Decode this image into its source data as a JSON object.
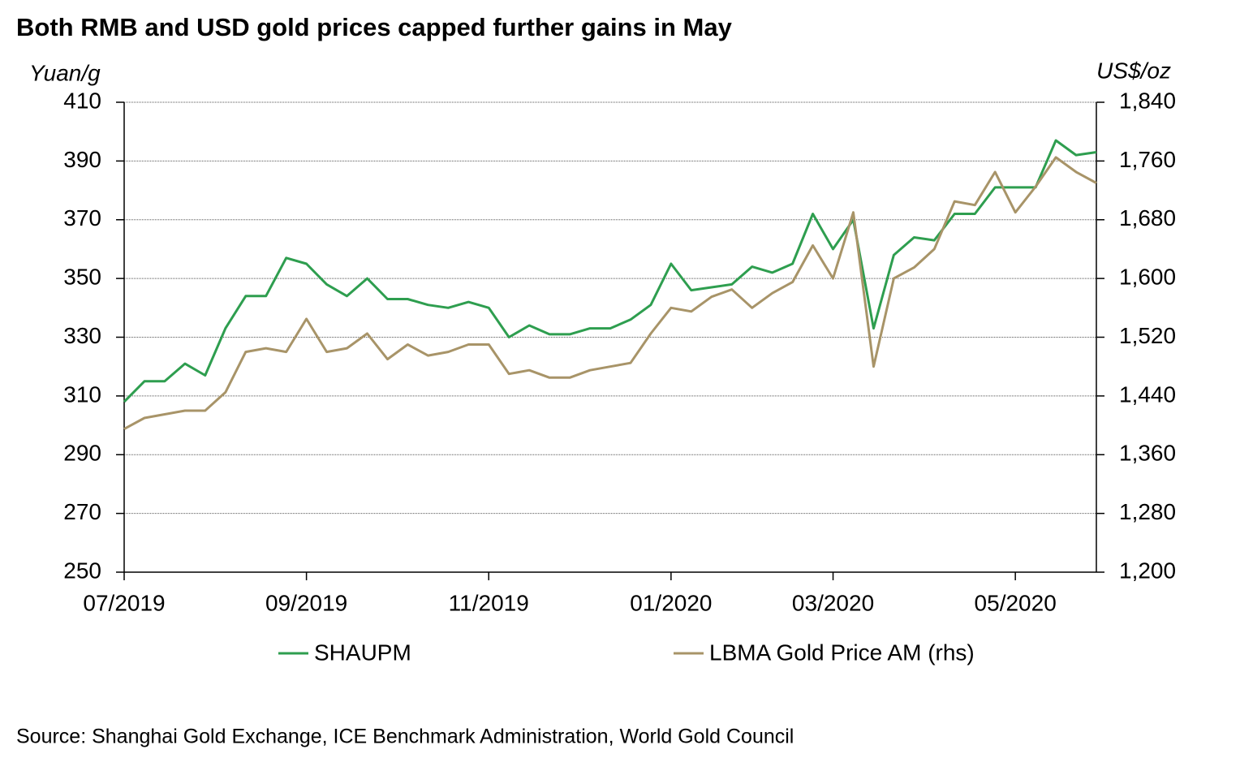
{
  "chart_data": {
    "type": "line",
    "title": "Both RMB and USD gold prices capped further gains in May",
    "y_label": "Yuan/g",
    "y2_label": "US$/oz",
    "source": "Source: Shanghai Gold Exchange, ICE Benchmark Administration, World Gold Council",
    "categories": [
      "07/2019",
      null,
      null,
      null,
      null,
      null,
      null,
      null,
      null,
      "09/2019",
      null,
      null,
      null,
      null,
      null,
      null,
      null,
      null,
      "11/2019",
      null,
      null,
      null,
      null,
      null,
      null,
      null,
      null,
      "01/2020",
      null,
      null,
      null,
      null,
      null,
      null,
      null,
      "03/2020",
      null,
      null,
      null,
      null,
      null,
      null,
      null,
      null,
      "05/2020",
      null,
      null,
      null,
      null
    ],
    "ylim": [
      250,
      410
    ],
    "yticks": [
      250,
      270,
      290,
      310,
      330,
      350,
      370,
      390,
      410
    ],
    "y2lim": [
      1200,
      1840
    ],
    "y2ticks": [
      {
        "value": 1200,
        "label": "1,200"
      },
      {
        "value": 1280,
        "label": "1,280"
      },
      {
        "value": 1360,
        "label": "1,360"
      },
      {
        "value": 1440,
        "label": "1,440"
      },
      {
        "value": 1520,
        "label": "1,520"
      },
      {
        "value": 1600,
        "label": "1,600"
      },
      {
        "value": 1680,
        "label": "1,680"
      },
      {
        "value": 1760,
        "label": "1,760"
      },
      {
        "value": 1840,
        "label": "1,840"
      }
    ],
    "grid": true,
    "series": [
      {
        "name": "SHAUPM",
        "color": "#2e9e4f",
        "axis": "y",
        "values": [
          308,
          315,
          315,
          321,
          317,
          333,
          344,
          344,
          357,
          355,
          348,
          344,
          350,
          343,
          343,
          341,
          340,
          342,
          340,
          330,
          334,
          331,
          331,
          333,
          333,
          336,
          341,
          355,
          346,
          347,
          348,
          354,
          352,
          355,
          372,
          360,
          370,
          333,
          358,
          364,
          363,
          372,
          372,
          381,
          381,
          381,
          397,
          392,
          393
        ]
      },
      {
        "name": "LBMA Gold Price AM (rhs)",
        "color": "#a89468",
        "axis": "y2",
        "values": [
          1395,
          1410,
          1415,
          1420,
          1420,
          1445,
          1500,
          1505,
          1500,
          1545,
          1500,
          1505,
          1525,
          1490,
          1510,
          1495,
          1500,
          1510,
          1510,
          1470,
          1475,
          1465,
          1465,
          1475,
          1480,
          1485,
          1525,
          1560,
          1555,
          1575,
          1585,
          1560,
          1580,
          1595,
          1645,
          1600,
          1690,
          1480,
          1600,
          1615,
          1640,
          1705,
          1700,
          1745,
          1690,
          1725,
          1765,
          1745,
          1730
        ]
      }
    ]
  }
}
